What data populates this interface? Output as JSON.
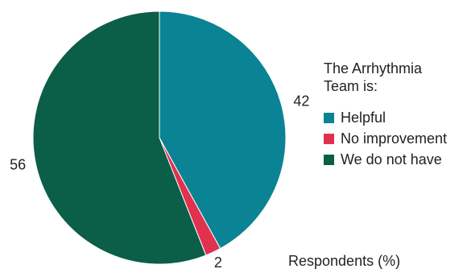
{
  "chart_data": {
    "type": "pie",
    "categories": [
      "Helpful",
      "No improvement",
      "We do not have"
    ],
    "values": [
      42,
      2,
      56
    ],
    "colors": [
      "#0a8394",
      "#e0314f",
      "#0b5e47"
    ],
    "legend_title": "The Arrhythmia Team is:",
    "legend_position": "right",
    "unit_note": "Respondents (%)"
  }
}
